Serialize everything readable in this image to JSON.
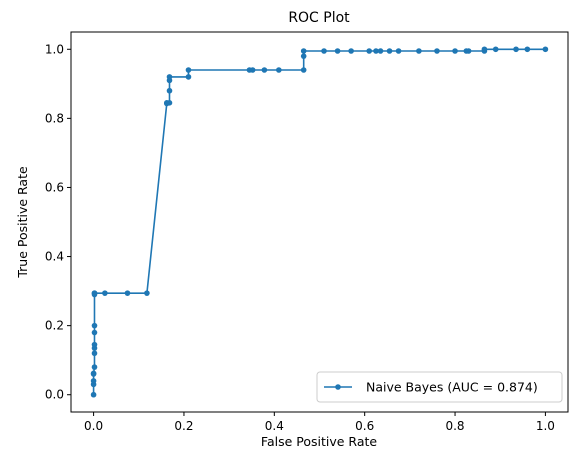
{
  "chart_data": {
    "type": "line",
    "title": "ROC Plot",
    "xlabel": "False Positive Rate",
    "ylabel": "True Positive Rate",
    "xlim": [
      -0.05,
      1.05
    ],
    "ylim": [
      -0.05,
      1.05
    ],
    "xticks": [
      "0.0",
      "0.2",
      "0.4",
      "0.6",
      "0.8",
      "1.0"
    ],
    "yticks": [
      "0.0",
      "0.2",
      "0.4",
      "0.6",
      "0.8",
      "1.0"
    ],
    "grid": false,
    "legend_position": "lower-right",
    "series": [
      {
        "name": "Naive Bayes (AUC = 0.874)",
        "color": "#1f77b4",
        "x": [
          0.0,
          0.0,
          0.0,
          0.0,
          0.0,
          0.002,
          0.002,
          0.002,
          0.002,
          0.002,
          0.002,
          0.002,
          0.002,
          0.002,
          0.025,
          0.075,
          0.118,
          0.162,
          0.162,
          0.168,
          0.168,
          0.168,
          0.168,
          0.21,
          0.21,
          0.345,
          0.352,
          0.378,
          0.41,
          0.465,
          0.465,
          0.465,
          0.51,
          0.54,
          0.57,
          0.61,
          0.625,
          0.635,
          0.655,
          0.675,
          0.72,
          0.76,
          0.8,
          0.825,
          0.83,
          0.865,
          0.865,
          0.89,
          0.935,
          0.96,
          1.0
        ],
        "y": [
          0.0,
          0.03,
          0.04,
          0.06,
          0.062,
          0.08,
          0.12,
          0.135,
          0.145,
          0.18,
          0.2,
          0.29,
          0.294,
          0.294,
          0.294,
          0.294,
          0.294,
          0.843,
          0.845,
          0.845,
          0.88,
          0.91,
          0.92,
          0.92,
          0.94,
          0.94,
          0.94,
          0.94,
          0.94,
          0.94,
          0.98,
          0.995,
          0.995,
          0.995,
          0.995,
          0.995,
          0.995,
          0.995,
          0.995,
          0.995,
          0.995,
          0.995,
          0.995,
          0.995,
          0.995,
          0.995,
          1.0,
          1.0,
          1.0,
          1.0,
          1.0
        ]
      }
    ]
  }
}
